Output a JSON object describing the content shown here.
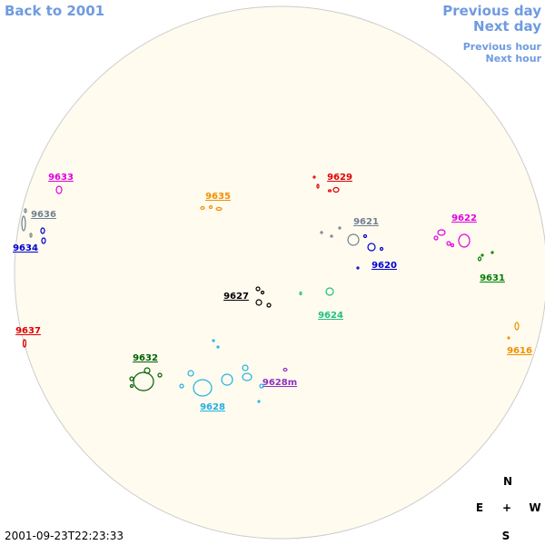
{
  "navigation": {
    "back_year": "Back to 2001",
    "previous_day": "Previous day",
    "next_day": "Next day",
    "previous_hour": "Previous hour",
    "next_hour": "Next hour"
  },
  "regions": [
    {
      "label": "9633",
      "color": "#e000e0"
    },
    {
      "label": "9635",
      "color": "#f09000"
    },
    {
      "label": "9629",
      "color": "#e00000"
    },
    {
      "label": "9636",
      "color": "#708090"
    },
    {
      "label": "9634",
      "color": "#0000d0"
    },
    {
      "label": "9621",
      "color": "#708090"
    },
    {
      "label": "9622",
      "color": "#e000e0"
    },
    {
      "label": "9620",
      "color": "#0000d0"
    },
    {
      "label": "9631",
      "color": "#008000"
    },
    {
      "label": "9627",
      "color": "#000000"
    },
    {
      "label": "9624",
      "color": "#20c080"
    },
    {
      "label": "9637",
      "color": "#e00000"
    },
    {
      "label": "9616",
      "color": "#f09000"
    },
    {
      "label": "9632",
      "color": "#006000"
    },
    {
      "label": "9628m",
      "color": "#9030c0"
    },
    {
      "label": "9628",
      "color": "#20b0e0"
    }
  ],
  "timestamp": "2001-09-23T22:23:33",
  "compass": {
    "north": "N",
    "east": "E",
    "center": "+",
    "west": "W",
    "south": "S"
  }
}
